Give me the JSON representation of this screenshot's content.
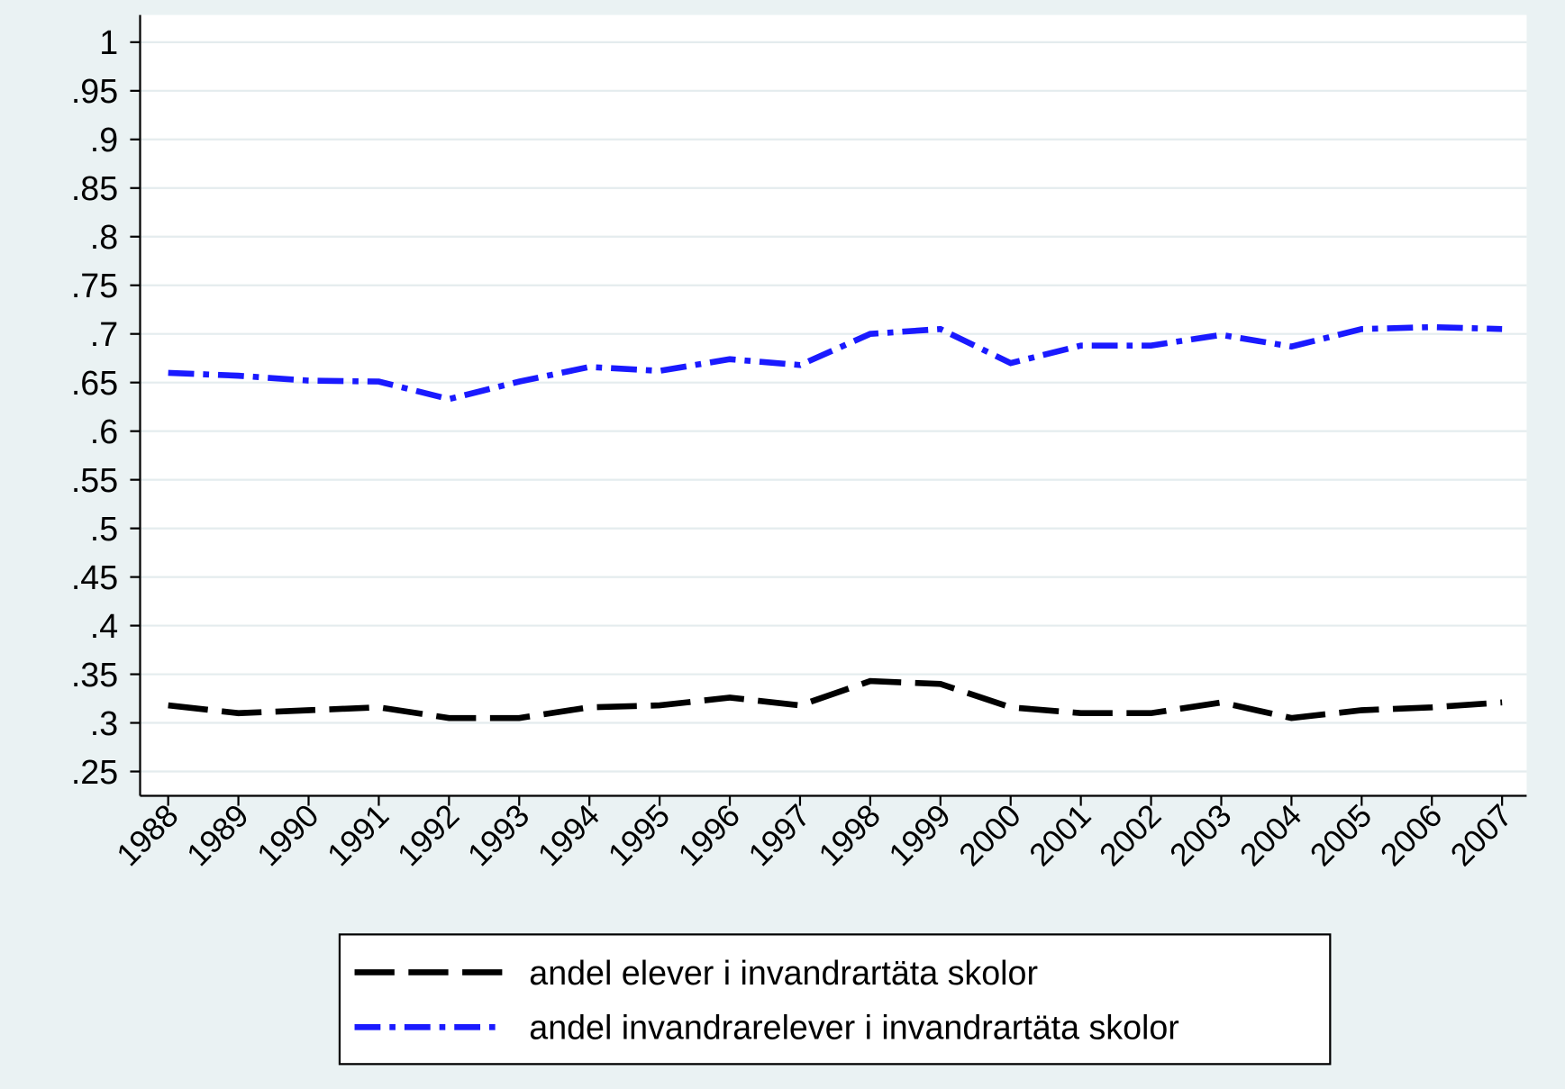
{
  "chart_data": {
    "type": "line",
    "x": [
      1988,
      1989,
      1990,
      1991,
      1992,
      1993,
      1994,
      1995,
      1996,
      1997,
      1998,
      1999,
      2000,
      2001,
      2002,
      2003,
      2004,
      2005,
      2006,
      2007
    ],
    "series": [
      {
        "name": "andel elever i invandrartäta skolor",
        "color": "#000000",
        "dash": "long-dash",
        "values": [
          0.318,
          0.31,
          0.313,
          0.316,
          0.305,
          0.305,
          0.316,
          0.318,
          0.326,
          0.318,
          0.343,
          0.34,
          0.316,
          0.31,
          0.31,
          0.321,
          0.305,
          0.313,
          0.316,
          0.321
        ]
      },
      {
        "name": "andel invandrarelever i invandrartäta skolor",
        "color": "#1a1aff",
        "dash": "dash-dot",
        "values": [
          0.66,
          0.657,
          0.652,
          0.651,
          0.633,
          0.651,
          0.666,
          0.662,
          0.674,
          0.668,
          0.7,
          0.705,
          0.67,
          0.688,
          0.688,
          0.699,
          0.687,
          0.705,
          0.707,
          0.705
        ]
      }
    ],
    "xlim": [
      1987.6,
      2007.35
    ],
    "xticks": [
      1988,
      1989,
      1990,
      1991,
      1992,
      1993,
      1994,
      1995,
      1996,
      1997,
      1998,
      1999,
      2000,
      2001,
      2002,
      2003,
      2004,
      2005,
      2006,
      2007
    ],
    "ylim": [
      0.225,
      1.028
    ],
    "yticks": [
      {
        "value": 0.25,
        "label": ".25"
      },
      {
        "value": 0.3,
        "label": ".3"
      },
      {
        "value": 0.35,
        "label": ".35"
      },
      {
        "value": 0.4,
        "label": ".4"
      },
      {
        "value": 0.45,
        "label": ".45"
      },
      {
        "value": 0.5,
        "label": ".5"
      },
      {
        "value": 0.55,
        "label": ".55"
      },
      {
        "value": 0.6,
        "label": ".6"
      },
      {
        "value": 0.65,
        "label": ".65"
      },
      {
        "value": 0.7,
        "label": ".7"
      },
      {
        "value": 0.75,
        "label": ".75"
      },
      {
        "value": 0.8,
        "label": ".8"
      },
      {
        "value": 0.85,
        "label": ".85"
      },
      {
        "value": 0.9,
        "label": ".9"
      },
      {
        "value": 0.95,
        "label": ".95"
      },
      1
    ],
    "grid": true,
    "legend": "bottom"
  }
}
